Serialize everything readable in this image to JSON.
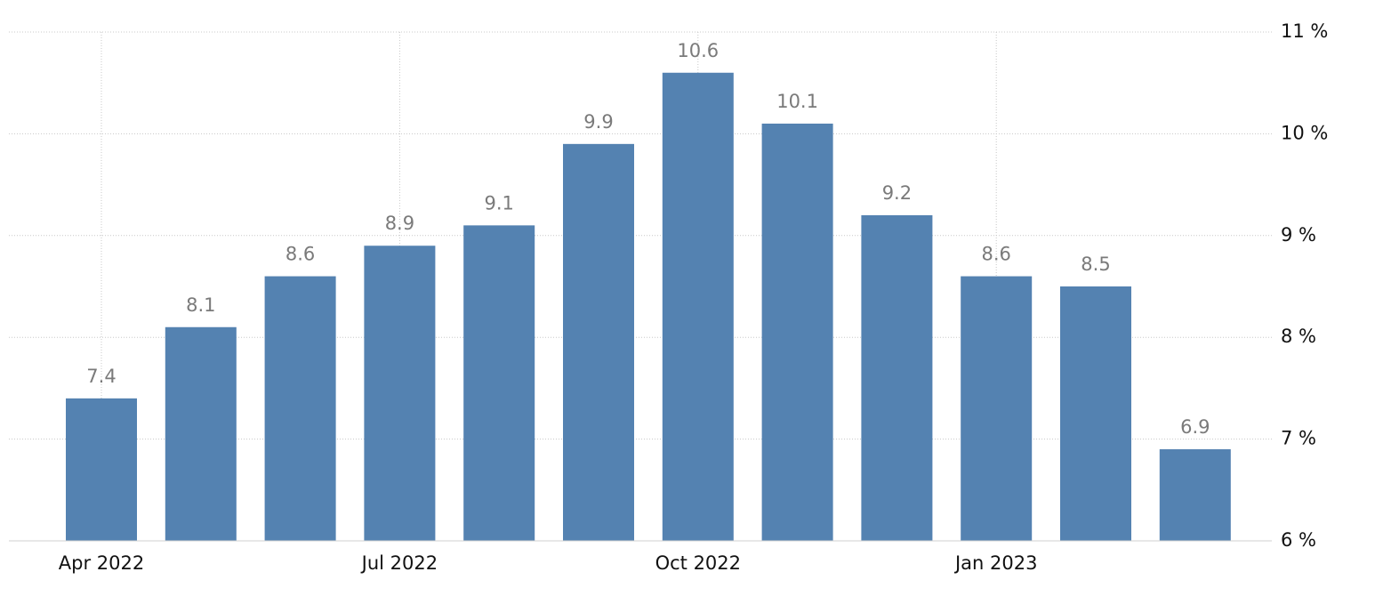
{
  "chart_data": {
    "type": "bar",
    "categories": [
      "Apr 2022",
      null,
      null,
      "Jul 2022",
      null,
      null,
      "Oct 2022",
      null,
      null,
      "Jan 2023",
      null,
      null
    ],
    "values": [
      7.4,
      8.1,
      8.6,
      8.9,
      9.1,
      9.9,
      10.6,
      10.1,
      9.2,
      8.6,
      8.5,
      6.9
    ],
    "color": "#5482b1",
    "ylim": [
      6,
      11
    ],
    "yticks": [
      {
        "value": 6,
        "label": "6 %"
      },
      {
        "value": 7,
        "label": "7 %"
      },
      {
        "value": 8,
        "label": "8 %"
      },
      {
        "value": 9,
        "label": "9 %"
      },
      {
        "value": 10,
        "label": "10 %"
      },
      {
        "value": 11,
        "label": "11 %"
      }
    ],
    "grid": true
  }
}
